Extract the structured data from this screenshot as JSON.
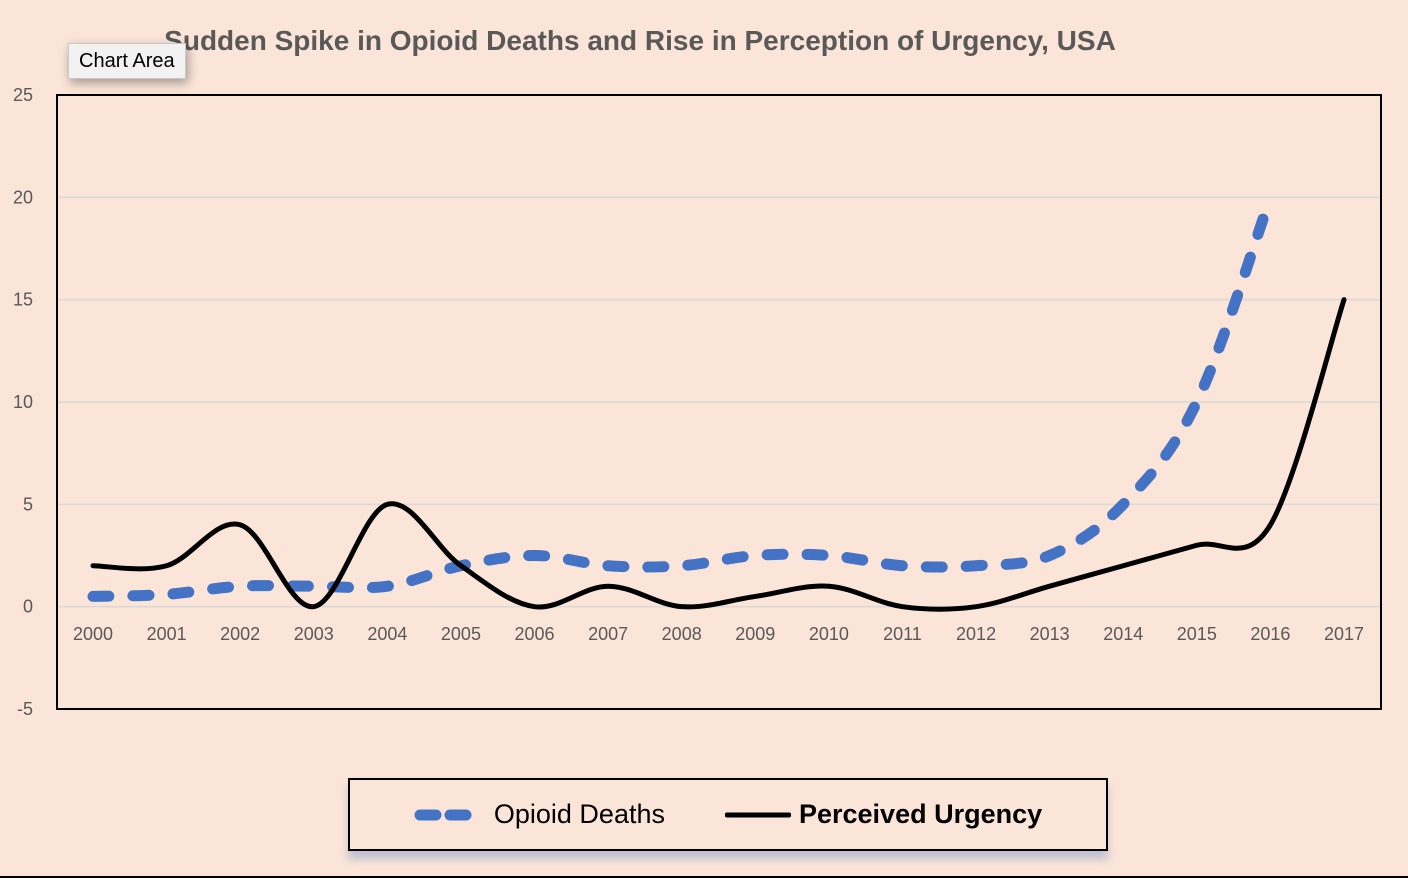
{
  "tooltip": {
    "label": "Chart Area"
  },
  "colors": {
    "background": "#fbe5d8",
    "opioid": "#4472c4",
    "urgency": "#000000",
    "grid": "#d9d9d9",
    "text": "#595959"
  },
  "chart_data": {
    "type": "line",
    "title": "Sudden Spike in Opioid Deaths and Rise in Perception of Urgency, USA",
    "xlabel": "",
    "ylabel": "",
    "x": [
      "2000",
      "2001",
      "2002",
      "2003",
      "2004",
      "2005",
      "2006",
      "2007",
      "2008",
      "2009",
      "2010",
      "2011",
      "2012",
      "2013",
      "2014",
      "2015",
      "2016",
      "2017"
    ],
    "ylim": [
      -5,
      25
    ],
    "yticks": [
      25,
      20,
      15,
      10,
      5,
      0,
      -5
    ],
    "grid": true,
    "smoothed": true,
    "legend_position": "bottom",
    "series": [
      {
        "name": "Opioid Deaths",
        "style": "dashed",
        "color": "#4472c4",
        "values": [
          0.5,
          0.6,
          1,
          1,
          1,
          2,
          2.5,
          2,
          2,
          2.5,
          2.5,
          2,
          2,
          2.5,
          5,
          10,
          20,
          null
        ]
      },
      {
        "name": "Perceived Urgency",
        "style": "solid",
        "color": "#000000",
        "values": [
          2,
          2,
          4,
          0,
          5,
          2,
          0,
          1,
          0,
          0.5,
          1,
          0,
          0,
          1,
          2,
          3,
          4,
          15
        ]
      }
    ]
  }
}
